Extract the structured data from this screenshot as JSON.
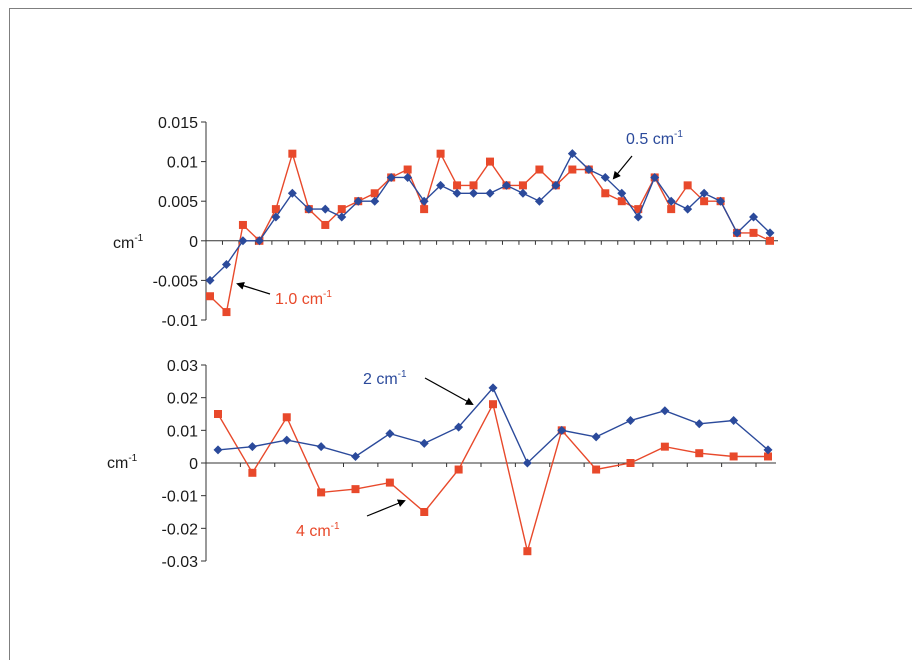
{
  "chart_data": [
    {
      "type": "line",
      "ylabel": "cm",
      "ylabel_sup": "-1",
      "ylim": [
        -0.01,
        0.015
      ],
      "yticks": [
        "0.015",
        "0.01",
        "0.005",
        "0",
        "-0.005",
        "-0.01"
      ],
      "ytick_values": [
        0.015,
        0.01,
        0.005,
        0,
        -0.005,
        -0.01
      ],
      "grid": false,
      "series": [
        {
          "color": "#2b4a9b",
          "marker": "diamond",
          "values": [
            -0.005,
            -0.003,
            0.0,
            0.0,
            0.003,
            0.006,
            0.004,
            0.004,
            0.003,
            0.005,
            0.005,
            0.008,
            0.008,
            0.005,
            0.007,
            0.006,
            0.006,
            0.006,
            0.007,
            0.006,
            0.005,
            0.007,
            0.011,
            0.009,
            0.008,
            0.006,
            0.003,
            0.008,
            0.005,
            0.004,
            0.006,
            0.005,
            0.001,
            0.003,
            0.001
          ]
        },
        {
          "color": "#e8492b",
          "marker": "square",
          "values": [
            -0.007,
            -0.009,
            0.002,
            0.0,
            0.004,
            0.011,
            0.004,
            0.002,
            0.004,
            0.005,
            0.006,
            0.008,
            0.009,
            0.004,
            0.011,
            0.007,
            0.007,
            0.01,
            0.007,
            0.007,
            0.009,
            0.007,
            0.009,
            0.009,
            0.006,
            0.005,
            0.004,
            0.008,
            0.004,
            0.007,
            0.005,
            0.005,
            0.001,
            0.001,
            0.0
          ]
        }
      ],
      "annotations": [
        {
          "text": "0.5 cm",
          "sup": "-1",
          "color": "#2b4a9b"
        },
        {
          "text": "1.0 cm",
          "sup": "-1",
          "color": "#e8492b"
        }
      ]
    },
    {
      "type": "line",
      "ylabel": "cm",
      "ylabel_sup": "-1",
      "ylim": [
        -0.03,
        0.03
      ],
      "yticks": [
        "0.03",
        "0.02",
        "0.01",
        "0",
        "-0.01",
        "-0.02",
        "-0.03"
      ],
      "ytick_values": [
        0.03,
        0.02,
        0.01,
        0,
        -0.01,
        -0.02,
        -0.03
      ],
      "grid": false,
      "series": [
        {
          "color": "#2b4a9b",
          "marker": "diamond",
          "values": [
            0.004,
            0.005,
            0.007,
            0.005,
            0.002,
            0.009,
            0.006,
            0.011,
            0.023,
            0.0,
            0.01,
            0.008,
            0.013,
            0.016,
            0.012,
            0.013,
            0.004
          ]
        },
        {
          "color": "#e8492b",
          "marker": "square",
          "values": [
            0.015,
            -0.003,
            0.014,
            -0.009,
            -0.008,
            -0.006,
            -0.015,
            -0.002,
            0.018,
            -0.027,
            0.01,
            -0.002,
            0.0,
            0.005,
            0.003,
            0.002,
            0.002
          ]
        }
      ],
      "annotations": [
        {
          "text": "2 cm",
          "sup": "-1",
          "color": "#2b4a9b"
        },
        {
          "text": "4 cm",
          "sup": "-1",
          "color": "#e8492b"
        }
      ]
    }
  ]
}
